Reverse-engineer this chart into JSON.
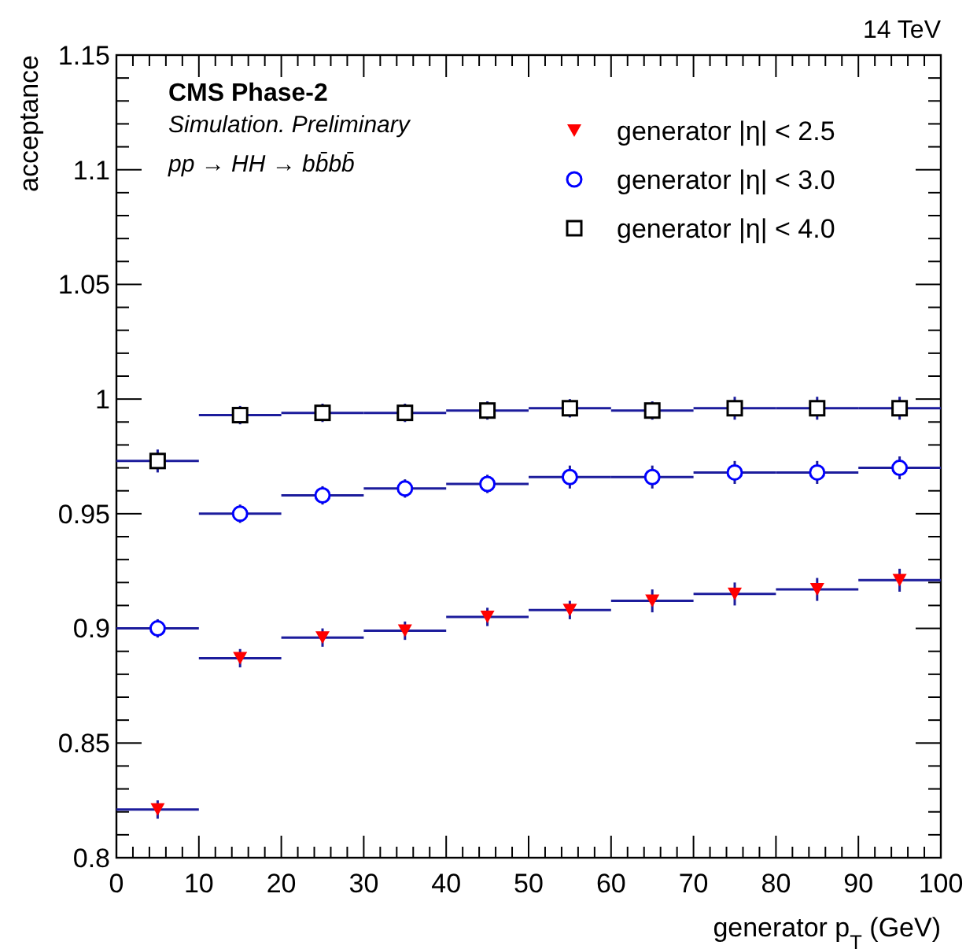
{
  "chart_data": {
    "type": "scatter",
    "title": "CMS Phase-2",
    "annotations": [
      "Simulation. Preliminary",
      "pp → HH → bb̄bb̄",
      "14 TeV"
    ],
    "xlabel": "generator p$_{T}$ (GeV)",
    "ylabel": "acceptance",
    "x": [
      5,
      15,
      25,
      35,
      45,
      55,
      65,
      75,
      85,
      95
    ],
    "series": [
      {
        "name": "generator |η| < 2.5",
        "color": "#ff0000",
        "marker": "triangle",
        "xerrors": [
          5,
          5,
          5,
          5,
          5,
          5,
          5,
          5,
          5,
          5
        ],
        "values": [
          0.821,
          0.887,
          0.896,
          0.899,
          0.905,
          0.908,
          0.912,
          0.915,
          0.917,
          0.921
        ],
        "errors": [
          0.004,
          0.004,
          0.004,
          0.004,
          0.004,
          0.004,
          0.005,
          0.005,
          0.005,
          0.005
        ]
      },
      {
        "name": "generator |η| < 3.0",
        "color": "#0000ff",
        "marker": "circle",
        "xerrors": [
          5,
          5,
          5,
          5,
          5,
          5,
          5,
          5,
          5,
          5
        ],
        "values": [
          0.9,
          0.95,
          0.958,
          0.961,
          0.963,
          0.966,
          0.966,
          0.968,
          0.968,
          0.97
        ],
        "errors": [
          0.004,
          0.004,
          0.004,
          0.004,
          0.004,
          0.005,
          0.005,
          0.005,
          0.005,
          0.005
        ]
      },
      {
        "name": "generator |η| < 4.0",
        "color": "#000000",
        "marker": "square",
        "xerrors": [
          5,
          5,
          5,
          5,
          5,
          5,
          5,
          5,
          5,
          5
        ],
        "values": [
          0.973,
          0.993,
          0.994,
          0.994,
          0.995,
          0.996,
          0.995,
          0.996,
          0.996,
          0.996
        ],
        "errors": [
          0.005,
          0.004,
          0.004,
          0.004,
          0.004,
          0.004,
          0.004,
          0.005,
          0.005,
          0.005
        ]
      }
    ],
    "xlim": [
      0,
      100
    ],
    "xticks": [
      0,
      10,
      20,
      30,
      40,
      50,
      60,
      70,
      80,
      90,
      100
    ],
    "ylim": [
      0.8,
      1.15
    ],
    "yticks": [
      {
        "value": 0.8,
        "label": "0.8"
      },
      0.85,
      {
        "value": 0.9,
        "label": "0.9"
      },
      0.95,
      {
        "value": 1.0,
        "label": "1"
      },
      1.05,
      {
        "value": 1.1,
        "label": "1.1"
      },
      1.15
    ],
    "legend": "top right",
    "grid": false
  }
}
